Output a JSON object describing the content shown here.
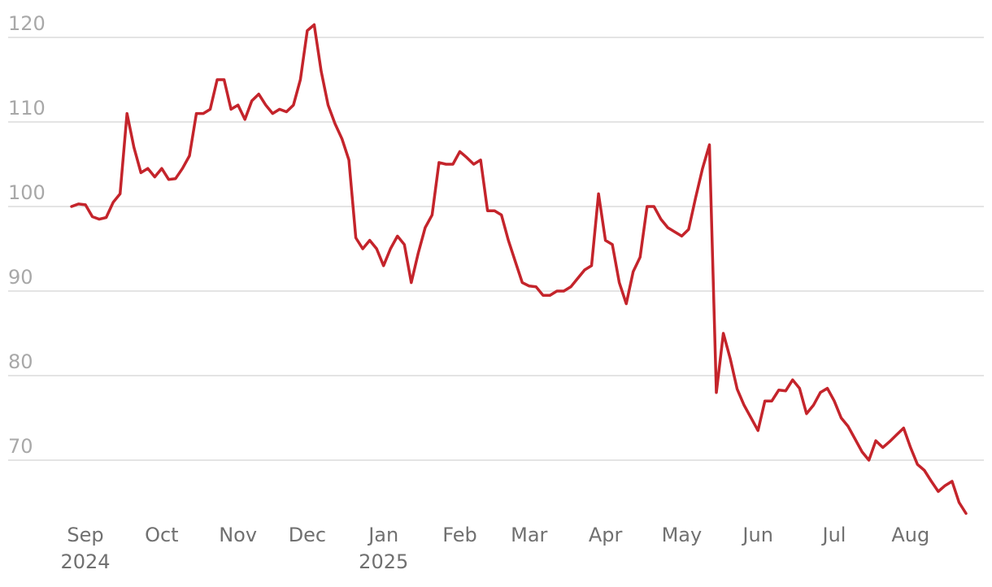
{
  "chart_data": {
    "type": "line",
    "categories": [
      null,
      null,
      "Sep 2024",
      null,
      null,
      null,
      null,
      null,
      null,
      null,
      null,
      null,
      null,
      "Oct",
      null,
      null,
      null,
      null,
      null,
      null,
      null,
      null,
      null,
      null,
      "Nov",
      null,
      null,
      null,
      null,
      null,
      null,
      null,
      null,
      null,
      "Dec",
      null,
      null,
      null,
      null,
      null,
      null,
      null,
      null,
      null,
      null,
      "Jan 2025",
      null,
      null,
      null,
      null,
      null,
      null,
      null,
      null,
      null,
      null,
      "Feb",
      null,
      null,
      null,
      null,
      null,
      null,
      null,
      null,
      null,
      "Mar",
      null,
      null,
      null,
      null,
      null,
      null,
      null,
      null,
      null,
      null,
      "Apr",
      null,
      null,
      null,
      null,
      null,
      null,
      null,
      null,
      null,
      null,
      "May",
      null,
      null,
      null,
      null,
      null,
      null,
      null,
      null,
      null,
      null,
      "Jun",
      null,
      null,
      null,
      null,
      null,
      null,
      null,
      null,
      null,
      null,
      "Jul",
      null,
      null,
      null,
      null,
      null,
      null,
      null,
      null,
      null,
      null,
      "Aug",
      null,
      null,
      null,
      null,
      null,
      null,
      null,
      null
    ],
    "values": [
      100,
      100.3,
      100.2,
      98.8,
      98.5,
      98.7,
      100.5,
      101.5,
      111,
      107,
      104,
      104.5,
      103.5,
      104.5,
      103.2,
      103.3,
      104.5,
      106,
      111,
      111,
      111.5,
      115,
      115,
      111.5,
      112,
      110.3,
      112.5,
      113.3,
      112,
      111,
      111.5,
      111.2,
      112,
      115,
      120.8,
      121.5,
      116,
      112,
      109.8,
      108,
      105.5,
      96.3,
      95,
      96,
      95,
      93,
      95,
      96.5,
      95.5,
      91,
      94.5,
      97.5,
      99,
      105.2,
      105,
      105,
      106.5,
      105.8,
      105,
      105.5,
      99.5,
      99.5,
      99,
      96,
      93.5,
      91,
      90.6,
      90.5,
      89.5,
      89.5,
      90,
      90,
      90.5,
      91.5,
      92.5,
      93,
      101.5,
      96,
      95.5,
      91,
      88.5,
      92.3,
      94,
      100,
      100,
      98.5,
      97.5,
      97,
      96.5,
      97.3,
      101,
      104.5,
      107.3,
      78,
      85,
      82,
      78.4,
      76.5,
      75,
      73.5,
      77,
      77,
      78.3,
      78.2,
      79.5,
      78.5,
      75.5,
      76.5,
      78,
      78.5,
      77,
      75,
      74,
      72.5,
      71,
      70,
      72.3,
      71.5,
      72.2,
      73,
      73.8,
      71.5,
      69.5,
      68.8,
      67.5,
      66.3,
      67,
      67.5,
      65,
      63.7
    ],
    "color": "#c4242b",
    "ylim": [
      62.5,
      122.5
    ],
    "yticks": [
      70,
      80,
      90,
      100,
      110,
      120
    ],
    "grid": true
  }
}
